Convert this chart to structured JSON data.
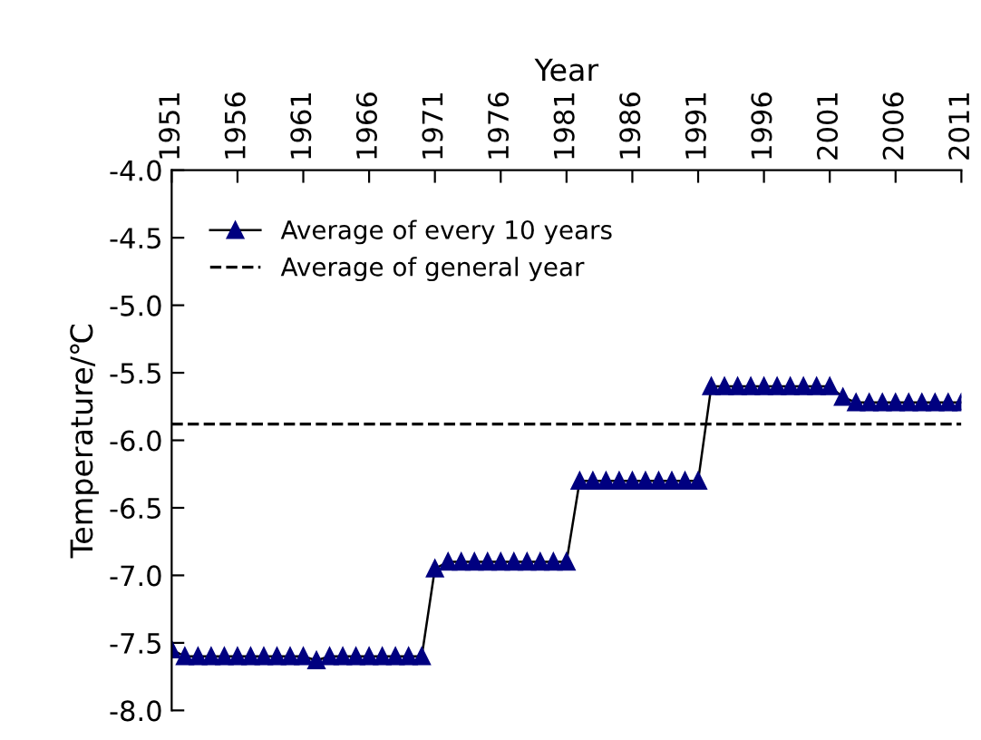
{
  "chart_data": {
    "type": "line",
    "xlabel": "Year",
    "ylabel": "Temperature/℃",
    "x": [
      1951,
      1952,
      1953,
      1954,
      1955,
      1956,
      1957,
      1958,
      1959,
      1960,
      1961,
      1962,
      1963,
      1964,
      1965,
      1966,
      1967,
      1968,
      1969,
      1970,
      1971,
      1972,
      1973,
      1974,
      1975,
      1976,
      1977,
      1978,
      1979,
      1980,
      1981,
      1982,
      1983,
      1984,
      1985,
      1986,
      1987,
      1988,
      1989,
      1990,
      1991,
      1992,
      1993,
      1994,
      1995,
      1996,
      1997,
      1998,
      1999,
      2000,
      2001,
      2002,
      2003,
      2004,
      2005,
      2006,
      2007,
      2008,
      2009,
      2010,
      2011
    ],
    "series": [
      {
        "name": "Average of every 10 years",
        "color": "#000080",
        "values": [
          -7.55,
          -7.6,
          -7.6,
          -7.6,
          -7.6,
          -7.6,
          -7.6,
          -7.6,
          -7.6,
          -7.6,
          -7.6,
          -7.63,
          -7.6,
          -7.6,
          -7.6,
          -7.6,
          -7.6,
          -7.6,
          -7.6,
          -7.6,
          -6.95,
          -6.9,
          -6.9,
          -6.9,
          -6.9,
          -6.9,
          -6.9,
          -6.9,
          -6.9,
          -6.9,
          -6.9,
          -6.3,
          -6.3,
          -6.3,
          -6.3,
          -6.3,
          -6.3,
          -6.3,
          -6.3,
          -6.3,
          -6.3,
          -5.6,
          -5.6,
          -5.6,
          -5.6,
          -5.6,
          -5.6,
          -5.6,
          -5.6,
          -5.6,
          -5.6,
          -5.68,
          -5.72,
          -5.72,
          -5.72,
          -5.72,
          -5.72,
          -5.72,
          -5.72,
          -5.72,
          -5.72
        ]
      }
    ],
    "ref_lines": [
      {
        "axis": "y",
        "value": -5.88,
        "label": "Average of general year",
        "color": "#000000",
        "line_style": "dashed"
      }
    ],
    "xlim": [
      1951,
      2011
    ],
    "xticks": [
      1951,
      1956,
      1961,
      1966,
      1971,
      1976,
      1981,
      1986,
      1991,
      1996,
      2001,
      2006,
      2011
    ],
    "ylim": [
      -8.0,
      -4.0
    ],
    "yticks": [
      {
        "value": -8.0,
        "label": "-8.0"
      },
      {
        "value": -7.5,
        "label": "-7.5"
      },
      {
        "value": -7.0,
        "label": "-7.0"
      },
      {
        "value": -6.5,
        "label": "-6.5"
      },
      {
        "value": -6.0,
        "label": "-6.0"
      },
      {
        "value": -5.5,
        "label": "-5.5"
      },
      {
        "value": -5.0,
        "label": "-5.0"
      },
      {
        "value": -4.5,
        "label": "-4.5"
      },
      {
        "value": -4.0,
        "label": "-4.0"
      }
    ],
    "marker": "triangle",
    "line_style": "solid",
    "grid": false,
    "legend": "top left"
  }
}
